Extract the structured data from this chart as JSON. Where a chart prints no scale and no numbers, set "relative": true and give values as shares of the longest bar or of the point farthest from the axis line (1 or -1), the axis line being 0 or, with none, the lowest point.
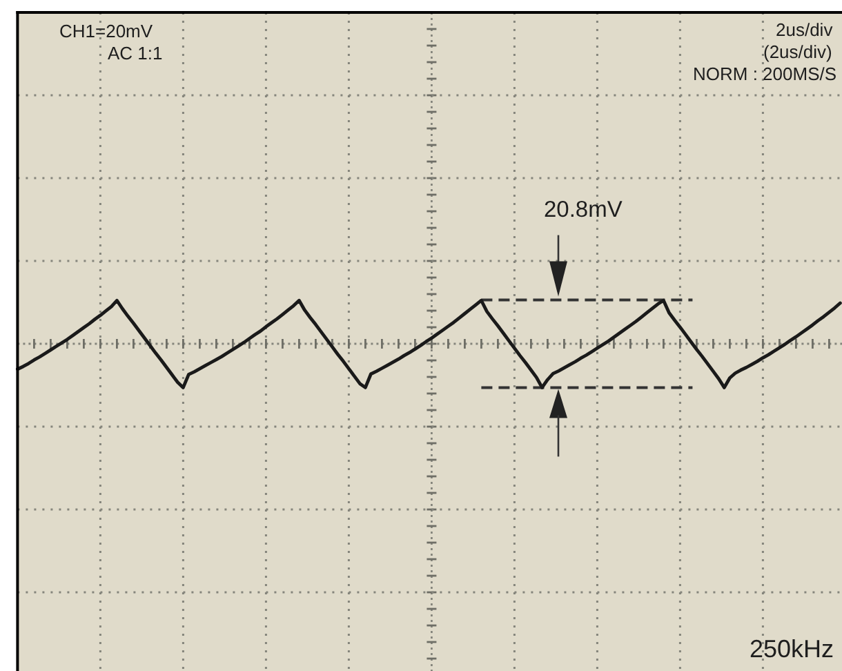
{
  "chart_data": {
    "type": "line",
    "relative": true,
    "categories": [
      null,
      null,
      null,
      null,
      null,
      null,
      null,
      null,
      null,
      null,
      null,
      null,
      null,
      null,
      null,
      null,
      null,
      null,
      null,
      null,
      null,
      null,
      null,
      null,
      null,
      null,
      null,
      null,
      null,
      null,
      null,
      null,
      null,
      null,
      null,
      null,
      null,
      null,
      null,
      null,
      null,
      null,
      null,
      null,
      null,
      null,
      null,
      null,
      null,
      null,
      null,
      null,
      null,
      null,
      null,
      null,
      null,
      null,
      null,
      null,
      null,
      null,
      null,
      null,
      null,
      null,
      null,
      null,
      null,
      null,
      null,
      null,
      null,
      null,
      null,
      null,
      null,
      null,
      null,
      null,
      null,
      null,
      null,
      null,
      null,
      null,
      null,
      null,
      null,
      null,
      null,
      null,
      null,
      null,
      null,
      null,
      null,
      null,
      null,
      null,
      null,
      null,
      null,
      null,
      null,
      null,
      null,
      null,
      null,
      null,
      null,
      null,
      null,
      null,
      null,
      null,
      null,
      null,
      null,
      null,
      null,
      null,
      null,
      null,
      null,
      null,
      null,
      null,
      null,
      null,
      null,
      null,
      null,
      null,
      null,
      null,
      null,
      null,
      null,
      null,
      null,
      null,
      null,
      null,
      null,
      null,
      null,
      null,
      null,
      null
    ],
    "series": [
      {
        "color": "#1a1a1a",
        "values": [
          -0.58,
          -0.52,
          -0.45,
          -0.37,
          -0.3,
          -0.22,
          -0.14,
          -0.06,
          0.02,
          0.1,
          0.19,
          0.28,
          0.37,
          0.46,
          0.56,
          0.65,
          0.75,
          0.85,
          0.99,
          0.8,
          0.63,
          0.47,
          0.3,
          0.13,
          -0.04,
          -0.21,
          -0.37,
          -0.54,
          -0.71,
          -0.88,
          -1,
          -0.7,
          -0.64,
          -0.57,
          -0.5,
          -0.43,
          -0.36,
          -0.29,
          -0.21,
          -0.13,
          -0.05,
          0.03,
          0.12,
          0.21,
          0.29,
          0.39,
          0.48,
          0.57,
          0.67,
          0.77,
          0.87,
          0.99,
          0.77,
          0.6,
          0.44,
          0.27,
          0.1,
          -0.07,
          -0.24,
          -0.4,
          -0.57,
          -0.74,
          -0.91,
          -1,
          -0.69,
          -0.63,
          -0.56,
          -0.49,
          -0.42,
          -0.35,
          -0.27,
          -0.2,
          -0.12,
          -0.04,
          0.05,
          0.13,
          0.22,
          0.31,
          0.4,
          0.49,
          0.59,
          0.69,
          0.79,
          0.89,
          0.99,
          0.74,
          0.57,
          0.41,
          0.24,
          0.07,
          -0.1,
          -0.27,
          -0.43,
          -0.6,
          -0.77,
          -1,
          -0.82,
          -0.68,
          -0.62,
          -0.55,
          -0.48,
          -0.41,
          -0.33,
          -0.26,
          -0.18,
          -0.1,
          -0.02,
          0.06,
          0.15,
          0.24,
          0.33,
          0.42,
          0.51,
          0.61,
          0.71,
          0.81,
          0.91,
          0.99,
          0.71,
          0.54,
          0.38,
          0.21,
          0.04,
          -0.13,
          -0.29,
          -0.46,
          -0.63,
          -0.8,
          -1,
          -0.78,
          -0.67,
          -0.6,
          -0.54,
          -0.47,
          -0.4,
          -0.32,
          -0.25,
          -0.17,
          -0.09,
          -0.01,
          0.08,
          0.16,
          0.25,
          0.34,
          0.43,
          0.53,
          0.62,
          0.72,
          0.82,
          0.93
        ]
      }
    ],
    "grid": true,
    "ref_lines": [
      {
        "axis": "y",
        "value": 1,
        "line_style": "dashed",
        "color": "#333333"
      },
      {
        "axis": "y",
        "value": -1,
        "line_style": "dashed",
        "color": "#333333"
      }
    ],
    "annotations": [
      "CH1=20mV",
      "AC 1:1",
      "2us/div",
      "(2us/div)",
      "NORM : 200MS/S",
      "20.8mV",
      "250kHz"
    ]
  }
}
